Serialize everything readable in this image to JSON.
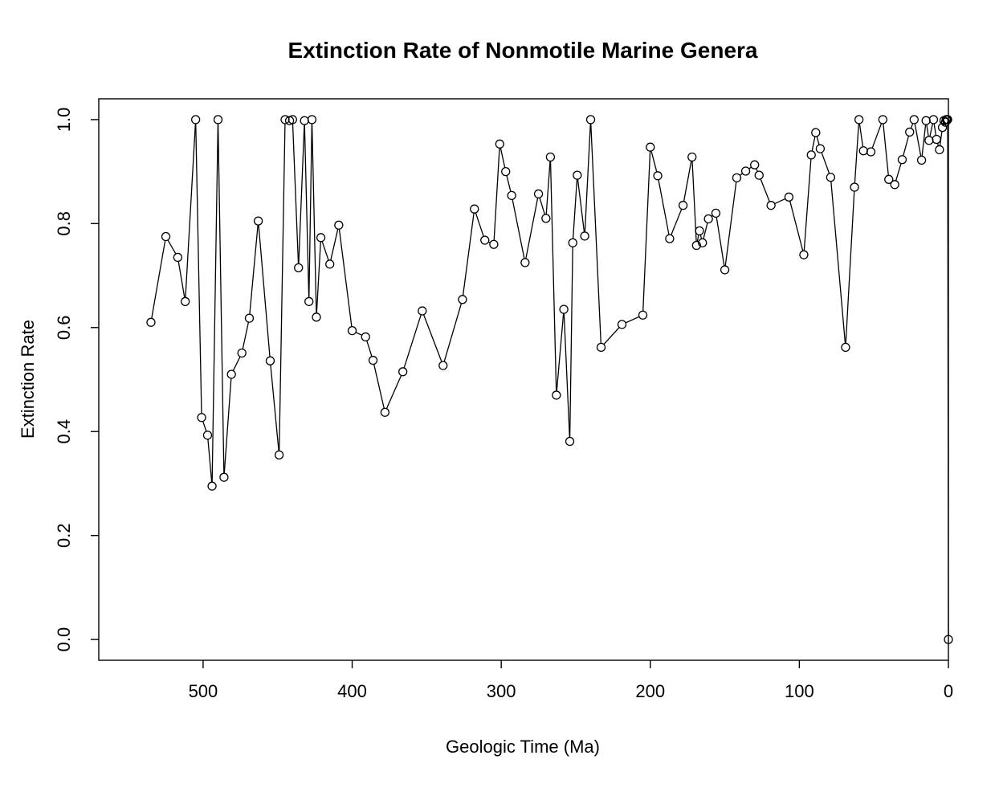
{
  "chart_data": {
    "type": "line",
    "title": "Extinction Rate of Nonmotile Marine Genera",
    "xlabel": "Geologic Time (Ma)",
    "ylabel": "Extinction Rate",
    "xlim": [
      570,
      0
    ],
    "ylim": [
      -0.04,
      1.04
    ],
    "x_reversed": true,
    "x_ticks": [
      500,
      400,
      300,
      200,
      100,
      0
    ],
    "x_tick_labels": [
      "500",
      "400",
      "300",
      "200",
      "100",
      "0"
    ],
    "y_ticks": [
      0.0,
      0.2,
      0.4,
      0.6,
      0.8,
      1.0
    ],
    "y_tick_labels": [
      "0.0",
      "0.2",
      "0.4",
      "0.6",
      "0.8",
      "1.0"
    ],
    "grid": false,
    "legend": "none",
    "colors": {
      "series": "#000000",
      "axis": "#000000",
      "background": "#ffffff"
    },
    "marker": "open-circle",
    "series": [
      {
        "points": [
          [
            535,
            0.61
          ],
          [
            525,
            0.775
          ],
          [
            517,
            0.735
          ],
          [
            512,
            0.65
          ],
          [
            505,
            1.0
          ],
          [
            501,
            0.427
          ],
          [
            497,
            0.393
          ],
          [
            494,
            0.295
          ],
          [
            490,
            1.0
          ],
          [
            486,
            0.312
          ],
          [
            481,
            0.51
          ],
          [
            474,
            0.551
          ],
          [
            469,
            0.618
          ],
          [
            463,
            0.805
          ],
          [
            455,
            0.536
          ],
          [
            449,
            0.355
          ],
          [
            445,
            1.0
          ],
          [
            442,
            0.998
          ],
          [
            440,
            1.0
          ],
          [
            436,
            0.715
          ],
          [
            432,
            0.998
          ],
          [
            429,
            0.65
          ],
          [
            427,
            1.0
          ],
          [
            424,
            0.62
          ],
          [
            421,
            0.773
          ],
          [
            415,
            0.722
          ],
          [
            409,
            0.797
          ],
          [
            400,
            0.594
          ],
          [
            391,
            0.582
          ],
          [
            386,
            0.537
          ],
          [
            378,
            0.437
          ],
          [
            366,
            0.515
          ],
          [
            353,
            0.632
          ],
          [
            339,
            0.527
          ],
          [
            326,
            0.654
          ],
          [
            318,
            0.828
          ],
          [
            311,
            0.768
          ],
          [
            305,
            0.76
          ],
          [
            301,
            0.953
          ],
          [
            297,
            0.9
          ],
          [
            293,
            0.854
          ],
          [
            284,
            0.725
          ],
          [
            275,
            0.857
          ],
          [
            270,
            0.81
          ],
          [
            267,
            0.928
          ],
          [
            263,
            0.47
          ],
          [
            258,
            0.635
          ],
          [
            254,
            0.381
          ],
          [
            252,
            0.763
          ],
          [
            249,
            0.893
          ],
          [
            244,
            0.776
          ],
          [
            240,
            1.0
          ],
          [
            233,
            0.562
          ],
          [
            219,
            0.606
          ],
          [
            205,
            0.624
          ],
          [
            200,
            0.947
          ],
          [
            195,
            0.892
          ],
          [
            187,
            0.771
          ],
          [
            178,
            0.835
          ],
          [
            172,
            0.928
          ],
          [
            169,
            0.758
          ],
          [
            167,
            0.786
          ],
          [
            165,
            0.763
          ],
          [
            161,
            0.809
          ],
          [
            156,
            0.82
          ],
          [
            150,
            0.711
          ],
          [
            142,
            0.888
          ],
          [
            136,
            0.901
          ],
          [
            130,
            0.913
          ],
          [
            127,
            0.893
          ],
          [
            119,
            0.835
          ],
          [
            107,
            0.851
          ],
          [
            97,
            0.74
          ],
          [
            92,
            0.932
          ],
          [
            89,
            0.975
          ],
          [
            86,
            0.944
          ],
          [
            79,
            0.889
          ],
          [
            69,
            0.562
          ],
          [
            63,
            0.87
          ],
          [
            60,
            1.0
          ],
          [
            57,
            0.94
          ],
          [
            52,
            0.938
          ],
          [
            44,
            1.0
          ],
          [
            40,
            0.885
          ],
          [
            36,
            0.875
          ],
          [
            31,
            0.923
          ],
          [
            26,
            0.976
          ],
          [
            23,
            1.0
          ],
          [
            18,
            0.922
          ],
          [
            15,
            0.998
          ],
          [
            13,
            0.96
          ],
          [
            10,
            1.0
          ],
          [
            8,
            0.962
          ],
          [
            6,
            0.942
          ],
          [
            4,
            0.985
          ],
          [
            3,
            0.998
          ],
          [
            2,
            0.995
          ],
          [
            1.5,
            1.0
          ],
          [
            1,
            1.0
          ],
          [
            0.5,
            1.0
          ],
          [
            0,
            0.0
          ]
        ]
      }
    ]
  }
}
